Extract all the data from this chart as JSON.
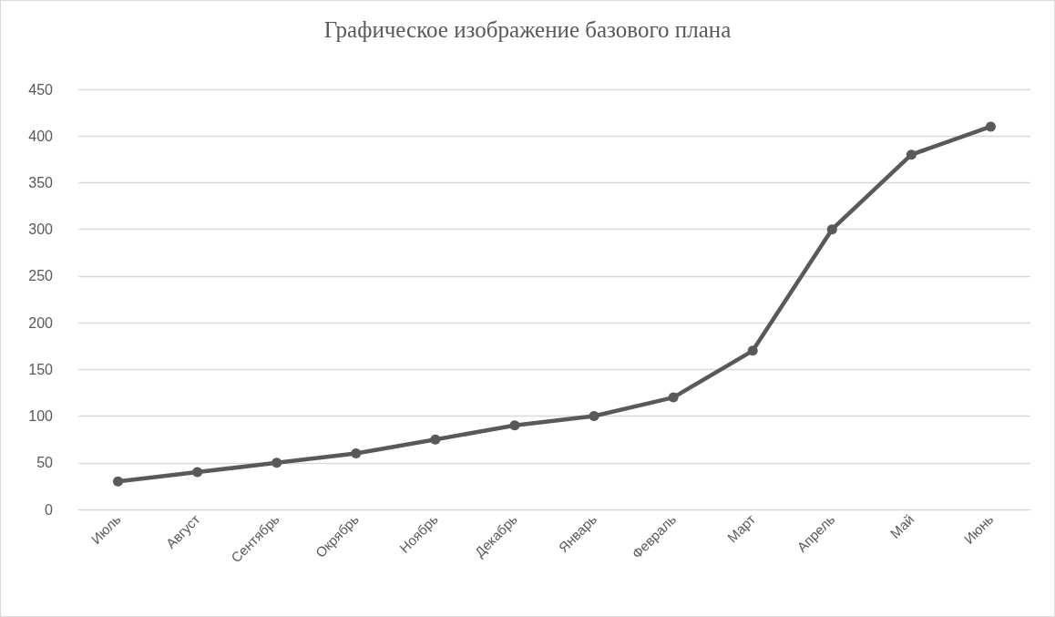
{
  "chart_data": {
    "type": "line",
    "title": "Графическое изображение базового плана",
    "categories": [
      "Июль",
      "Август",
      "Сентябрь",
      "Окрябрь",
      "Ноябрь",
      "Декабрь",
      "Январь",
      "Февраль",
      "Март",
      "Апрель",
      "Май",
      "Июнь"
    ],
    "series": [
      {
        "color": "#595959",
        "values": [
          30,
          40,
          50,
          60,
          75,
          90,
          100,
          120,
          170,
          300,
          380,
          410
        ]
      }
    ],
    "ylim": [
      0,
      450
    ],
    "yticks": [
      0,
      50,
      100,
      150,
      200,
      250,
      300,
      350,
      400,
      450
    ],
    "grid": "y",
    "marker": "circle",
    "line_style": "solid"
  }
}
